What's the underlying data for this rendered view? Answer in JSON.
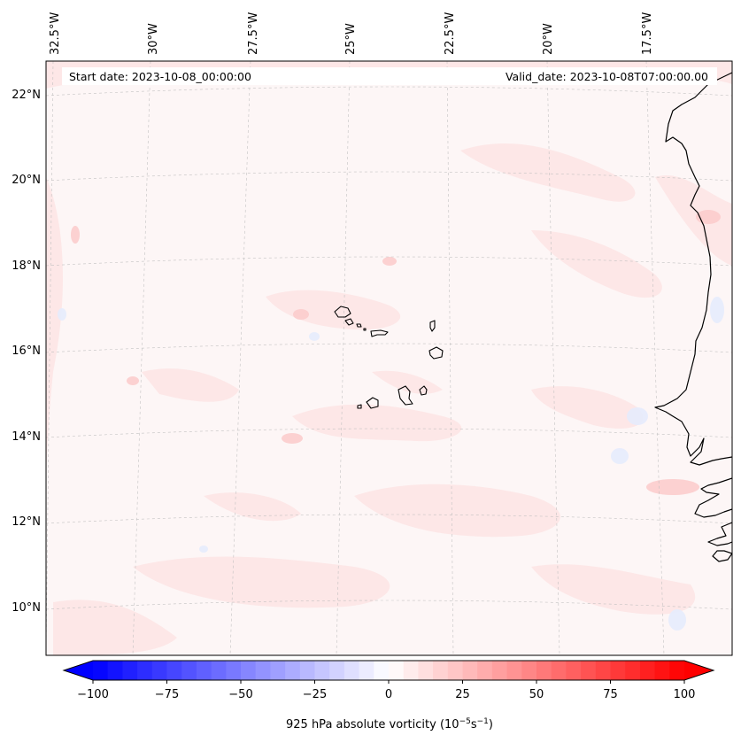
{
  "annotations": {
    "start_date": "Start date: 2023-10-08_00:00:00",
    "valid_date": "Valid_date: 2023-10-08T07:00:00.00"
  },
  "longitude_labels": [
    "32.5°W",
    "30°W",
    "27.5°W",
    "25°W",
    "22.5°W",
    "20°W",
    "17.5°W"
  ],
  "latitude_labels": [
    "22°N",
    "20°N",
    "18°N",
    "16°N",
    "14°N",
    "12°N",
    "10°N"
  ],
  "colorbar": {
    "label": "925 hPa absolute vorticity (10",
    "label_exp1": "−5",
    "label_mid": "s",
    "label_exp2": "−1",
    "label_end": ")",
    "ticks": [
      "−100",
      "−75",
      "−50",
      "−25",
      "0",
      "25",
      "50",
      "75",
      "100"
    ],
    "min": -100,
    "max": 100,
    "step": 5,
    "cmap": "bwr",
    "extend": "both"
  },
  "map": {
    "projection": "conic",
    "extent_lon": [
      -33,
      -16
    ],
    "extent_lat": [
      9,
      22.7
    ],
    "gridlines": "dashed",
    "coastline_color": "#000000",
    "field_background_color": "#fdf6f6"
  }
}
